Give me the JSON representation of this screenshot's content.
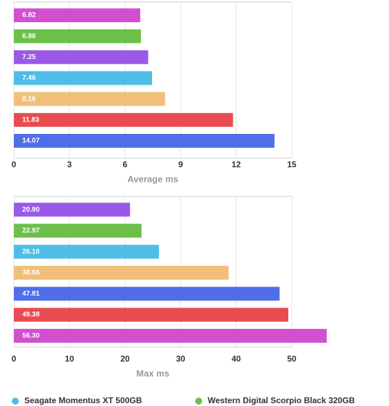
{
  "chart_data": [
    {
      "type": "bar",
      "orientation": "horizontal",
      "xlabel": "Average ms",
      "categories": [
        null,
        null,
        null,
        null,
        null,
        null,
        null
      ],
      "values": [
        6.82,
        6.86,
        7.25,
        7.46,
        8.16,
        11.83,
        14.07
      ],
      "value_labels": [
        "6.82",
        "6.86",
        "7.25",
        "7.46",
        "8.16",
        "11.83",
        "14.07"
      ],
      "colors": [
        "#d24fd0",
        "#6cc04a",
        "#9b59e8",
        "#4fbde8",
        "#f0c07a",
        "#e84c50",
        "#4f6ee8"
      ],
      "xlim": [
        0,
        15
      ],
      "xticks": [
        0,
        3,
        6,
        9,
        12,
        15
      ],
      "grid": true
    },
    {
      "type": "bar",
      "orientation": "horizontal",
      "xlabel": "Max ms",
      "categories": [
        null,
        null,
        null,
        null,
        null,
        null,
        null
      ],
      "values": [
        20.9,
        22.97,
        26.1,
        38.66,
        47.81,
        49.38,
        56.3
      ],
      "value_labels": [
        "20.90",
        "22.97",
        "26.10",
        "38.66",
        "47.81",
        "49.38",
        "56.30"
      ],
      "colors": [
        "#9b59e8",
        "#6cc04a",
        "#4fbde8",
        "#f0c07a",
        "#4f6ee8",
        "#e84c50",
        "#d24fd0"
      ],
      "xlim": [
        0,
        50
      ],
      "xticks": [
        0,
        10,
        20,
        30,
        40,
        50
      ],
      "grid": true
    }
  ],
  "legend": [
    {
      "name": "Seagate Momentus XT 500GB",
      "color": "#4fbde8"
    },
    {
      "name": "Western Digital Scorpio Black 320GB",
      "color": "#6cc04a"
    }
  ]
}
